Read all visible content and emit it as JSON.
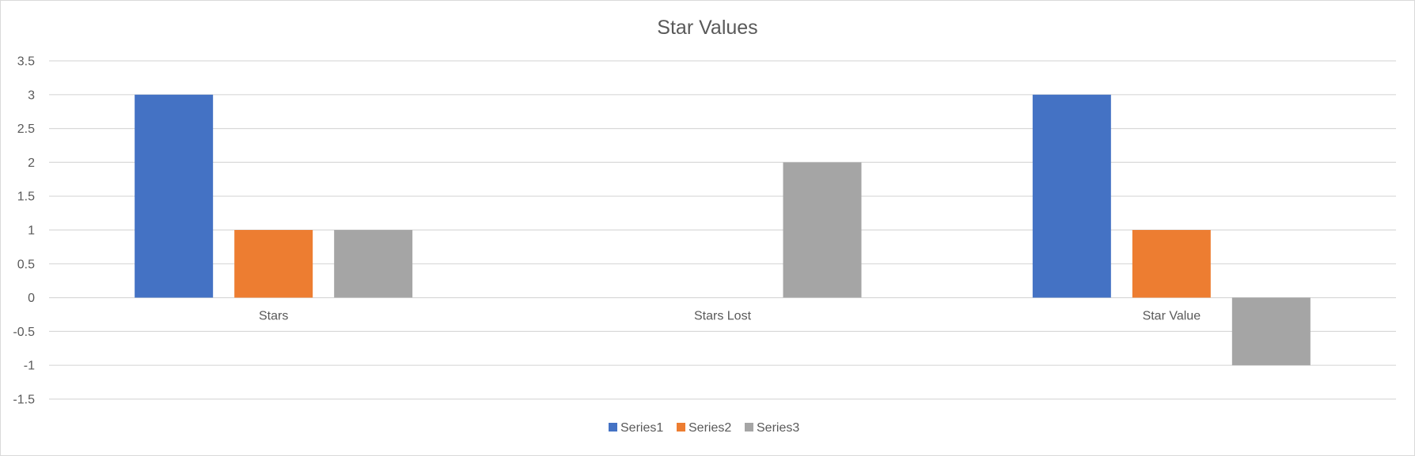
{
  "chart_data": {
    "type": "bar",
    "title": "Star Values",
    "categories": [
      "Stars",
      "Stars Lost",
      "Star Value"
    ],
    "series": [
      {
        "name": "Series1",
        "color": "#4472c4",
        "values": [
          3,
          0,
          3
        ]
      },
      {
        "name": "Series2",
        "color": "#ed7d31",
        "values": [
          1,
          0,
          1
        ]
      },
      {
        "name": "Series3",
        "color": "#a5a5a5",
        "values": [
          1,
          2,
          -1
        ]
      }
    ],
    "ylim": [
      -1.5,
      3.5
    ],
    "yticks": [
      "3.5",
      "3",
      "2.5",
      "2",
      "1.5",
      "1",
      "0.5",
      "0",
      "-0.5",
      "-1",
      "-1.5"
    ],
    "grid": true,
    "legend_position": "bottom"
  }
}
